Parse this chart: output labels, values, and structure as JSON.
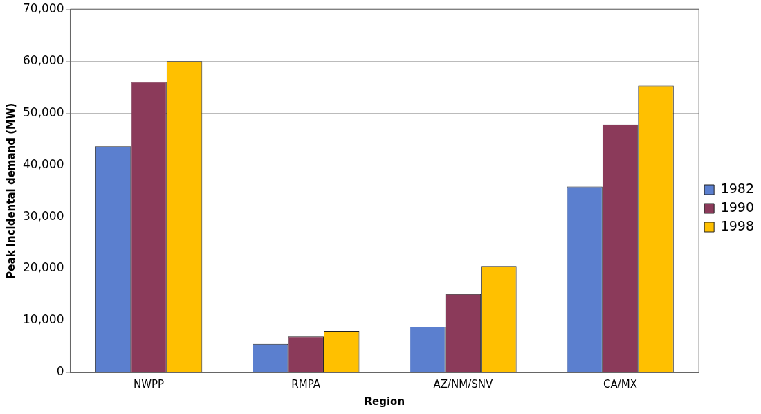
{
  "chart_data": {
    "type": "bar",
    "xlabel": "Region",
    "ylabel": "Peak incidental demand (MW)",
    "categories": [
      "NWPP",
      "RMPA",
      "AZ/NM/SNV",
      "CA/MX"
    ],
    "series": [
      {
        "name": "1982",
        "color": "#5b7fcf",
        "values": [
          43600,
          5500,
          8800,
          35800
        ]
      },
      {
        "name": "1990",
        "color": "#8b3a5a",
        "values": [
          56000,
          6900,
          15100,
          47800
        ]
      },
      {
        "name": "1998",
        "color": "#ffc000",
        "values": [
          60000,
          8000,
          20500,
          55300
        ]
      }
    ],
    "ylim": [
      0,
      70000
    ],
    "yticks": [
      0,
      {
        "value": 10000,
        "label": "10,000"
      },
      {
        "value": 20000,
        "label": "20,000"
      },
      {
        "value": 30000,
        "label": "30,000"
      },
      {
        "value": 40000,
        "label": "40,000"
      },
      {
        "value": 50000,
        "label": "50,000"
      },
      {
        "value": 60000,
        "label": "60,000"
      },
      {
        "value": 70000,
        "label": "70,000"
      }
    ],
    "grid": "y",
    "legend": "right"
  }
}
